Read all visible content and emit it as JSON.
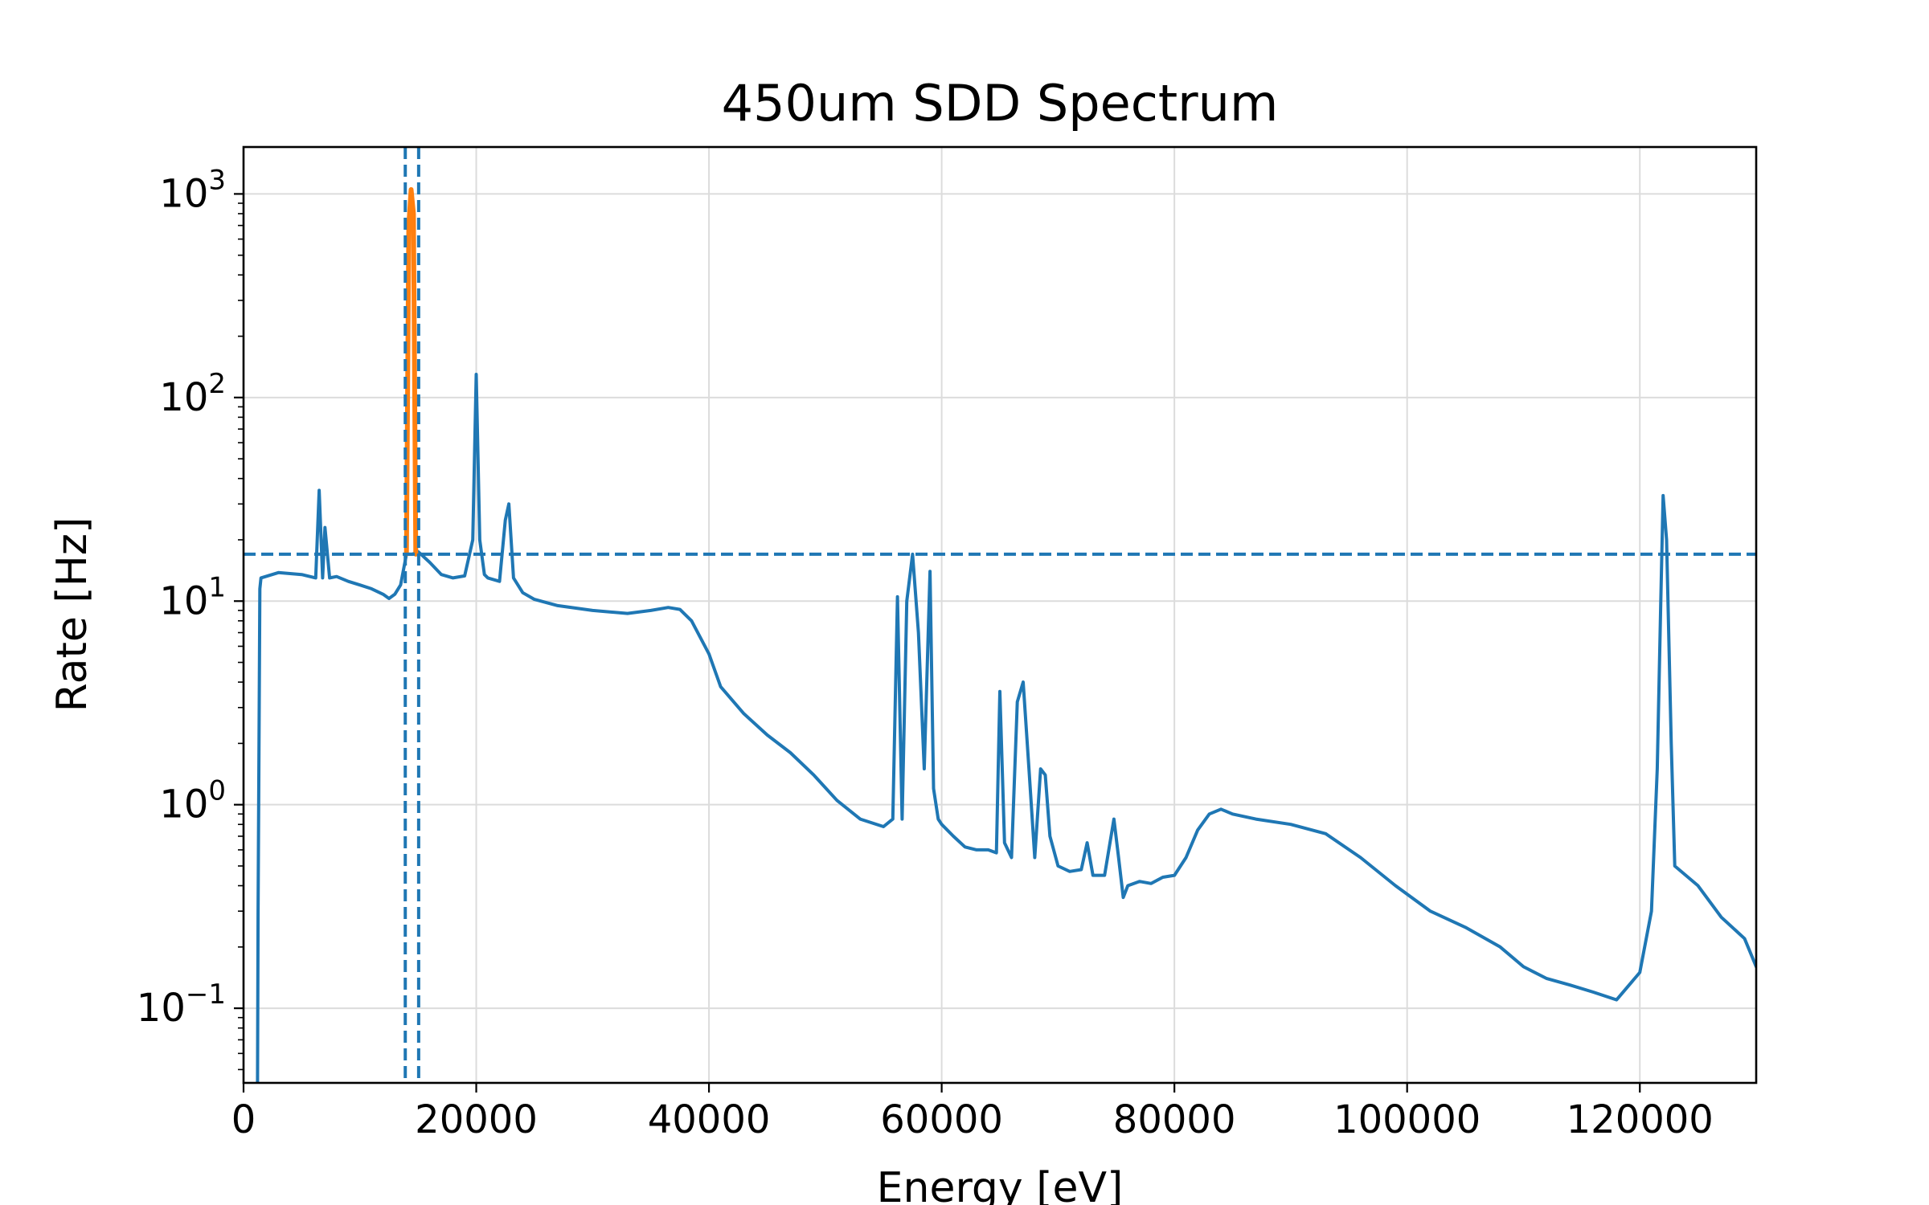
{
  "chart_data": {
    "type": "line",
    "title": "450um SDD Spectrum",
    "xlabel": "Energy [eV]",
    "ylabel": "Rate [Hz]",
    "xscale": "linear",
    "yscale": "log",
    "xlim": [
      0,
      130000
    ],
    "ylim": [
      0.043,
      1700
    ],
    "grid": true,
    "x_ticks": [
      0,
      20000,
      40000,
      60000,
      80000,
      100000,
      120000
    ],
    "x_tick_labels": [
      "0",
      "20000",
      "40000",
      "60000",
      "80000",
      "100000",
      "120000"
    ],
    "y_ticks": [
      0.1,
      1,
      10,
      100,
      1000
    ],
    "y_tick_labels": [
      {
        "base": "10",
        "exp": "−1"
      },
      {
        "base": "10",
        "exp": "0"
      },
      {
        "base": "10",
        "exp": "1"
      },
      {
        "base": "10",
        "exp": "2"
      },
      {
        "base": "10",
        "exp": "3"
      }
    ],
    "series": [
      {
        "color": "#1f77b4",
        "x": [
          1200,
          1250,
          1400,
          1500,
          3000,
          5000,
          6200,
          6500,
          6800,
          7000,
          7400,
          8000,
          9000,
          10000,
          11000,
          12000,
          12500,
          13000,
          13500,
          14000,
          14500,
          15000,
          16000,
          17000,
          18000,
          19000,
          19700,
          20000,
          20300,
          20700,
          21000,
          22000,
          22500,
          22800,
          23200,
          24000,
          25000,
          27000,
          30000,
          33000,
          35000,
          36500,
          37500,
          38500,
          40000,
          41000,
          43000,
          45000,
          47000,
          49000,
          51000,
          53000,
          55000,
          55800,
          56200,
          56600,
          57000,
          57500,
          58000,
          58500,
          59000,
          59300,
          59700,
          60000,
          61000,
          62000,
          63000,
          64000,
          64700,
          65000,
          65400,
          66000,
          66500,
          67000,
          67500,
          68000,
          68500,
          68900,
          69300,
          70000,
          71000,
          72000,
          72500,
          73000,
          74000,
          74800,
          75200,
          75600,
          76000,
          77000,
          78000,
          79000,
          80000,
          81000,
          82000,
          83000,
          84000,
          85000,
          87000,
          90000,
          93000,
          96000,
          99000,
          102000,
          105000,
          108000,
          110000,
          112000,
          114000,
          116000,
          118000,
          120000,
          121000,
          121500,
          121800,
          122000,
          122300,
          122700,
          123000,
          125000,
          127000,
          129000,
          130000
        ],
        "values": [
          0.043,
          0.3,
          11.5,
          13,
          13.8,
          13.5,
          13,
          35,
          13,
          23,
          13,
          13.2,
          12.5,
          12,
          11.5,
          10.8,
          10.3,
          10.8,
          12,
          17,
          17,
          17.5,
          15.5,
          13.5,
          13,
          13.3,
          20,
          130,
          20,
          13.5,
          13,
          12.5,
          25,
          30,
          13,
          11,
          10.2,
          9.5,
          9,
          8.7,
          9,
          9.3,
          9.1,
          8,
          5.5,
          3.8,
          2.8,
          2.2,
          1.8,
          1.4,
          1.05,
          0.85,
          0.78,
          0.85,
          10.5,
          0.85,
          10,
          17,
          7,
          1.5,
          14,
          1.2,
          0.85,
          0.8,
          0.7,
          0.62,
          0.6,
          0.6,
          0.58,
          3.6,
          0.65,
          0.55,
          3.2,
          4,
          1.5,
          0.55,
          1.5,
          1.4,
          0.7,
          0.5,
          0.47,
          0.48,
          0.65,
          0.45,
          0.45,
          0.85,
          0.55,
          0.35,
          0.4,
          0.42,
          0.41,
          0.44,
          0.45,
          0.55,
          0.75,
          0.9,
          0.95,
          0.9,
          0.85,
          0.8,
          0.72,
          0.55,
          0.4,
          0.3,
          0.25,
          0.2,
          0.16,
          0.14,
          0.13,
          0.12,
          0.11,
          0.15,
          0.3,
          1.5,
          10,
          33,
          20,
          2,
          0.5,
          0.4,
          0.28,
          0.22,
          0.16
        ]
      },
      {
        "color": "#ff7f0e",
        "x": [
          14000,
          14200,
          14400,
          14600,
          14800
        ],
        "values": [
          17,
          700,
          1050,
          800,
          17
        ]
      }
    ],
    "reference_lines": {
      "color": "#1f77b4",
      "style": "dashed",
      "vertical_x": [
        13900,
        15050
      ],
      "horizontal_y": [
        17
      ]
    }
  }
}
